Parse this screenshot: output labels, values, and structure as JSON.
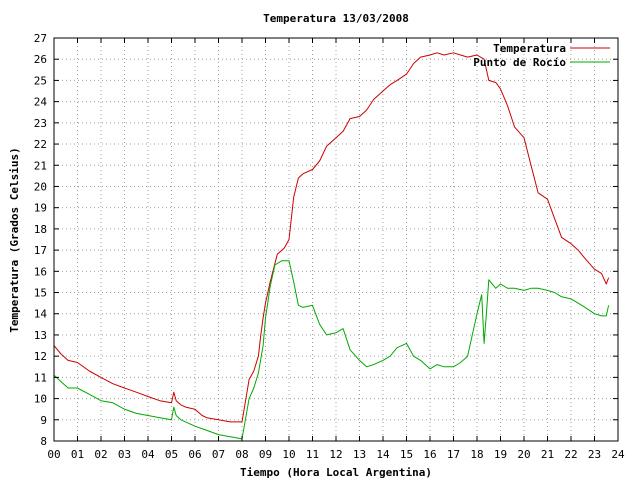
{
  "chart_data": {
    "type": "line",
    "title": "Temperatura 13/03/2008",
    "xlabel": "Tiempo (Hora Local Argentina)",
    "ylabel": "Temperatura (Grados Celsius)",
    "xlim": [
      0,
      24
    ],
    "ylim": [
      8,
      27
    ],
    "x_tick_labels": [
      "00",
      "01",
      "02",
      "03",
      "04",
      "05",
      "06",
      "07",
      "08",
      "09",
      "10",
      "11",
      "12",
      "13",
      "14",
      "15",
      "16",
      "17",
      "18",
      "19",
      "20",
      "21",
      "22",
      "23",
      "24"
    ],
    "y_tick_labels": [
      "8",
      "9",
      "10",
      "11",
      "12",
      "13",
      "14",
      "15",
      "16",
      "17",
      "18",
      "19",
      "20",
      "21",
      "22",
      "23",
      "24",
      "25",
      "26",
      "27"
    ],
    "grid": true,
    "legend_position": "top-right",
    "series": [
      {
        "name": "Temperatura",
        "color": "#cc0000",
        "x": [
          0,
          0.3,
          0.6,
          1.0,
          1.5,
          2.0,
          2.5,
          3.0,
          3.5,
          4.0,
          4.5,
          5.0,
          5.1,
          5.2,
          5.4,
          5.6,
          6.0,
          6.3,
          6.5,
          7.0,
          7.5,
          7.8,
          8.0,
          8.3,
          8.5,
          8.7,
          8.8,
          8.9,
          9.0,
          9.2,
          9.5,
          9.8,
          10.0,
          10.2,
          10.4,
          10.6,
          11.0,
          11.3,
          11.6,
          12.0,
          12.3,
          12.6,
          13.0,
          13.3,
          13.6,
          14.0,
          14.3,
          14.6,
          15.0,
          15.3,
          15.6,
          16.0,
          16.3,
          16.6,
          17.0,
          17.3,
          17.6,
          18.0,
          18.3,
          18.5,
          18.8,
          19.0,
          19.3,
          19.6,
          20.0,
          20.3,
          20.6,
          21.0,
          21.3,
          21.6,
          22.0,
          22.3,
          22.6,
          23.0,
          23.3,
          23.5,
          23.6
        ],
        "values": [
          12.5,
          12.1,
          11.8,
          11.7,
          11.3,
          11.0,
          10.7,
          10.5,
          10.3,
          10.1,
          9.9,
          9.8,
          10.3,
          9.9,
          9.7,
          9.6,
          9.5,
          9.2,
          9.1,
          9.0,
          8.9,
          8.9,
          8.9,
          10.9,
          11.3,
          12.0,
          13.0,
          13.8,
          14.5,
          15.5,
          16.8,
          17.1,
          17.5,
          19.5,
          20.4,
          20.6,
          20.8,
          21.2,
          21.9,
          22.3,
          22.6,
          23.2,
          23.3,
          23.6,
          24.1,
          24.5,
          24.8,
          25.0,
          25.3,
          25.8,
          26.1,
          26.2,
          26.3,
          26.2,
          26.3,
          26.2,
          26.1,
          26.2,
          26.0,
          25.0,
          24.9,
          24.6,
          23.8,
          22.8,
          22.3,
          21.0,
          19.7,
          19.4,
          18.5,
          17.6,
          17.3,
          17.0,
          16.6,
          16.1,
          15.9,
          15.4,
          15.7
        ]
      },
      {
        "name": "Punto de Rocío",
        "color": "#00aa00",
        "x": [
          0,
          0.3,
          0.6,
          1.0,
          1.5,
          2.0,
          2.5,
          3.0,
          3.5,
          4.0,
          4.5,
          5.0,
          5.1,
          5.2,
          5.4,
          5.6,
          6.0,
          6.5,
          7.0,
          7.5,
          8.0,
          8.3,
          8.5,
          8.7,
          8.9,
          9.0,
          9.2,
          9.4,
          9.7,
          10.0,
          10.2,
          10.4,
          10.6,
          11.0,
          11.3,
          11.6,
          12.0,
          12.3,
          12.6,
          13.0,
          13.3,
          13.6,
          14.0,
          14.3,
          14.6,
          15.0,
          15.3,
          15.6,
          16.0,
          16.3,
          16.6,
          17.0,
          17.3,
          17.6,
          18.0,
          18.2,
          18.3,
          18.4,
          18.5,
          18.8,
          19.0,
          19.3,
          19.6,
          20.0,
          20.3,
          20.6,
          21.0,
          21.3,
          21.6,
          22.0,
          22.3,
          22.6,
          23.0,
          23.3,
          23.5,
          23.6
        ],
        "values": [
          11.1,
          10.8,
          10.5,
          10.5,
          10.2,
          9.9,
          9.8,
          9.5,
          9.3,
          9.2,
          9.1,
          9.0,
          9.6,
          9.2,
          9.0,
          8.9,
          8.7,
          8.5,
          8.3,
          8.2,
          8.1,
          10.0,
          10.5,
          11.2,
          12.5,
          13.8,
          15.3,
          16.3,
          16.5,
          16.5,
          15.5,
          14.4,
          14.3,
          14.4,
          13.5,
          13.0,
          13.1,
          13.3,
          12.3,
          11.8,
          11.5,
          11.6,
          11.8,
          12.0,
          12.4,
          12.6,
          12.0,
          11.8,
          11.4,
          11.6,
          11.5,
          11.5,
          11.7,
          12.0,
          14.0,
          14.9,
          12.6,
          14.0,
          15.6,
          15.2,
          15.4,
          15.2,
          15.2,
          15.1,
          15.2,
          15.2,
          15.1,
          15.0,
          14.8,
          14.7,
          14.5,
          14.3,
          14.0,
          13.9,
          13.9,
          14.4
        ]
      }
    ]
  }
}
